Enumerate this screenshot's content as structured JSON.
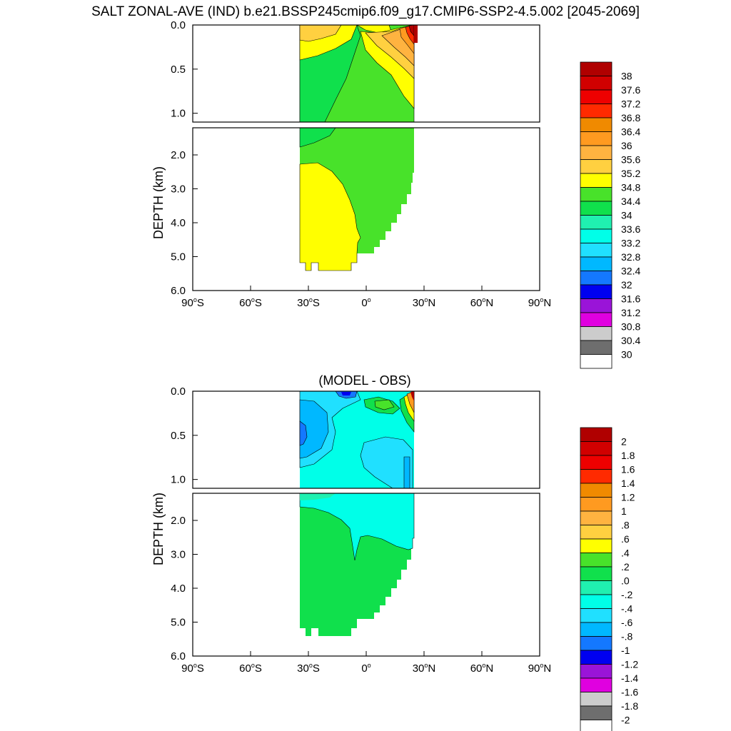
{
  "page_title": "SALT ZONAL-AVE (IND) b.e21.BSSP245cmip6.f09_g17.CMIP6-SSP2-4.5.002 [2045-2069]",
  "chart_data": [
    {
      "type": "heatmap",
      "title": "",
      "ylabel": "DEPTH (km)",
      "xlabel": "",
      "x_ticks": [
        "90°S",
        "60°S",
        "30°S",
        "0°",
        "30°N",
        "60°N",
        "90°N"
      ],
      "x_tick_values": [
        -90,
        -60,
        -30,
        0,
        30,
        60,
        90
      ],
      "xlim": [
        -90,
        90
      ],
      "upper_panel_yticks": [
        "0.0",
        "0.5",
        "1.0"
      ],
      "lower_panel_yticks": [
        "2.0",
        "3.0",
        "4.0",
        "5.0",
        "6.0"
      ],
      "upper_panel_ylim_km": [
        0,
        1.1
      ],
      "lower_panel_ylim_km": [
        1.2,
        6.0
      ],
      "ocean_lat_range": [
        -34,
        25
      ],
      "colorbar_labels": [
        "38",
        "37.6",
        "37.2",
        "36.8",
        "36.4",
        "36",
        "35.6",
        "35.2",
        "34.8",
        "34.4",
        "34",
        "33.6",
        "33.2",
        "32.8",
        "32.4",
        "32",
        "31.6",
        "31.2",
        "30.8",
        "30.4",
        "30"
      ],
      "colorbar_colors": [
        "#b00000",
        "#d10000",
        "#ee0000",
        "#ff2a00",
        "#f08a00",
        "#ff9a20",
        "#ffb340",
        "#ffd040",
        "#ffff00",
        "#48e22a",
        "#10e04c",
        "#20f0b0",
        "#00ffe8",
        "#20e0ff",
        "#00b8ff",
        "#1478ff",
        "#0000f0",
        "#9a14d8",
        "#e000e0",
        "#cccccc",
        "#6e6e6e",
        "#ffffff"
      ]
    },
    {
      "type": "heatmap",
      "title": "(MODEL - OBS)",
      "ylabel": "DEPTH (km)",
      "xlabel": "",
      "x_ticks": [
        "90°S",
        "60°S",
        "30°S",
        "0°",
        "30°N",
        "60°N",
        "90°N"
      ],
      "x_tick_values": [
        -90,
        -60,
        -30,
        0,
        30,
        60,
        90
      ],
      "xlim": [
        -90,
        90
      ],
      "upper_panel_yticks": [
        "0.0",
        "0.5",
        "1.0"
      ],
      "lower_panel_yticks": [
        "2.0",
        "3.0",
        "4.0",
        "5.0",
        "6.0"
      ],
      "upper_panel_ylim_km": [
        0,
        1.1
      ],
      "lower_panel_ylim_km": [
        1.2,
        6.0
      ],
      "ocean_lat_range": [
        -34,
        25
      ],
      "colorbar_labels": [
        "2",
        "1.8",
        "1.6",
        "1.4",
        "1.2",
        "1",
        ".8",
        ".6",
        ".4",
        ".2",
        ".0",
        "-.2",
        "-.4",
        "-.6",
        "-.8",
        "-1",
        "-1.2",
        "-1.4",
        "-1.6",
        "-1.8",
        "-2"
      ],
      "colorbar_colors": [
        "#b00000",
        "#d10000",
        "#ee0000",
        "#ff2a00",
        "#f08a00",
        "#ff9a20",
        "#ffb340",
        "#ffd040",
        "#ffff00",
        "#48e22a",
        "#10e04c",
        "#20f0b0",
        "#00ffe8",
        "#20e0ff",
        "#00b8ff",
        "#1478ff",
        "#0000f0",
        "#9a14d8",
        "#e000e0",
        "#cccccc",
        "#6e6e6e",
        "#ffffff"
      ]
    }
  ]
}
